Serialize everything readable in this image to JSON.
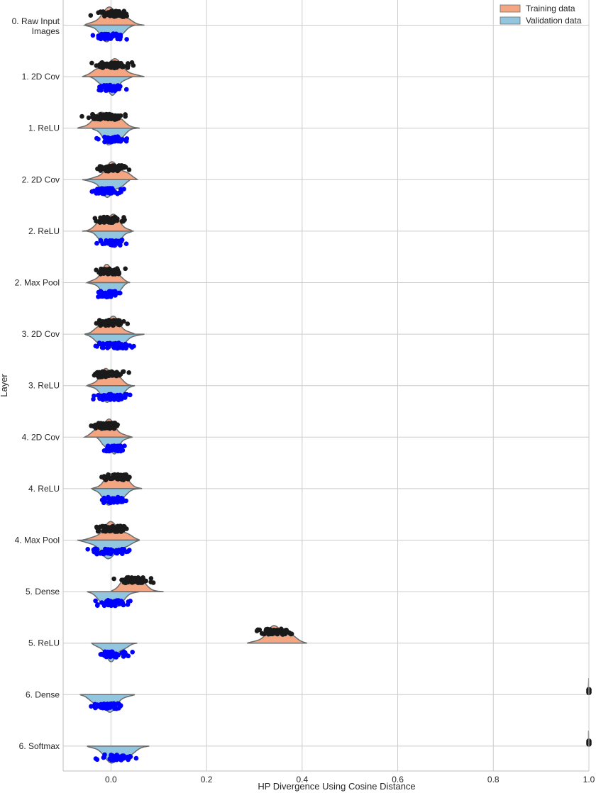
{
  "chart_data": {
    "type": "violin",
    "orientation": "horizontal",
    "split": true,
    "xlabel": "HP Divergence Using Cosine Distance",
    "ylabel": "Layer",
    "xlim": [
      -0.1,
      1.0
    ],
    "xticks": [
      0.0,
      0.2,
      0.4,
      0.6,
      0.8,
      1.0
    ],
    "xtick_labels": [
      "0.0",
      "0.2",
      "0.4",
      "0.6",
      "0.8",
      "1.0"
    ],
    "grid": true,
    "legend": {
      "position": "top-right",
      "entries": [
        {
          "label": "Training data",
          "color": "#f4a582"
        },
        {
          "label": "Validation data",
          "color": "#92c5de"
        }
      ]
    },
    "series_colors": {
      "training_fill": "#f4a582",
      "validation_fill": "#92c5de",
      "training_points": "#1a1a1a",
      "validation_points": "#0000ff",
      "outline": "#6b6b6b"
    },
    "categories": [
      {
        "label": [
          "0. Raw Input",
          "Images"
        ],
        "training": {
          "min": -0.055,
          "max": 0.07,
          "center": 0.0
        },
        "validation": {
          "min": -0.055,
          "max": 0.05,
          "center": 0.0
        }
      },
      {
        "label": [
          "1. 2D Cov"
        ],
        "training": {
          "min": -0.06,
          "max": 0.07,
          "center": 0.0
        },
        "validation": {
          "min": -0.045,
          "max": 0.045,
          "center": 0.0
        }
      },
      {
        "label": [
          "1. ReLU"
        ],
        "training": {
          "min": -0.07,
          "max": 0.06,
          "center": -0.01
        },
        "validation": {
          "min": -0.04,
          "max": 0.055,
          "center": 0.0
        }
      },
      {
        "label": [
          "2. 2D Cov"
        ],
        "training": {
          "min": -0.055,
          "max": 0.055,
          "center": 0.01
        },
        "validation": {
          "min": -0.06,
          "max": 0.04,
          "center": 0.0
        }
      },
      {
        "label": [
          "2. ReLU"
        ],
        "training": {
          "min": -0.06,
          "max": 0.045,
          "center": 0.0
        },
        "validation": {
          "min": -0.05,
          "max": 0.045,
          "center": 0.0
        }
      },
      {
        "label": [
          "2. Max Pool"
        ],
        "training": {
          "min": -0.05,
          "max": 0.04,
          "center": -0.005
        },
        "validation": {
          "min": -0.05,
          "max": 0.035,
          "center": 0.0
        }
      },
      {
        "label": [
          "3. 2D Cov"
        ],
        "training": {
          "min": -0.055,
          "max": 0.05,
          "center": 0.0
        },
        "validation": {
          "min": -0.055,
          "max": 0.07,
          "center": 0.0
        }
      },
      {
        "label": [
          "3. ReLU"
        ],
        "training": {
          "min": -0.05,
          "max": 0.045,
          "center": -0.005
        },
        "validation": {
          "min": -0.05,
          "max": 0.05,
          "center": 0.0
        }
      },
      {
        "label": [
          "4. 2D Cov"
        ],
        "training": {
          "min": -0.055,
          "max": 0.045,
          "center": -0.01
        },
        "validation": {
          "min": -0.03,
          "max": 0.045,
          "center": 0.0
        }
      },
      {
        "label": [
          "4. ReLU"
        ],
        "training": {
          "min": -0.04,
          "max": 0.065,
          "center": 0.01
        },
        "validation": {
          "min": -0.04,
          "max": 0.06,
          "center": 0.0
        }
      },
      {
        "label": [
          "4. Max Pool"
        ],
        "training": {
          "min": -0.06,
          "max": 0.06,
          "center": 0.005
        },
        "validation": {
          "min": -0.07,
          "max": 0.06,
          "center": 0.0
        }
      },
      {
        "label": [
          "5. Dense"
        ],
        "training": {
          "min": 0.0,
          "max": 0.11,
          "center": 0.04
        },
        "validation": {
          "min": -0.05,
          "max": 0.06,
          "center": 0.0
        }
      },
      {
        "label": [
          "5. ReLU"
        ],
        "training": {
          "min": 0.285,
          "max": 0.41,
          "center": 0.35
        },
        "validation": {
          "min": -0.04,
          "max": 0.055,
          "center": 0.0
        }
      },
      {
        "label": [
          "6. Dense"
        ],
        "training": {
          "min": 0.999,
          "max": 1.0,
          "center": 1.0
        },
        "validation": {
          "min": -0.065,
          "max": 0.05,
          "center": -0.01
        }
      },
      {
        "label": [
          "6. Softmax"
        ],
        "training": {
          "min": 0.999,
          "max": 1.0,
          "center": 1.0
        },
        "validation": {
          "min": -0.05,
          "max": 0.08,
          "center": 0.01
        }
      }
    ]
  }
}
